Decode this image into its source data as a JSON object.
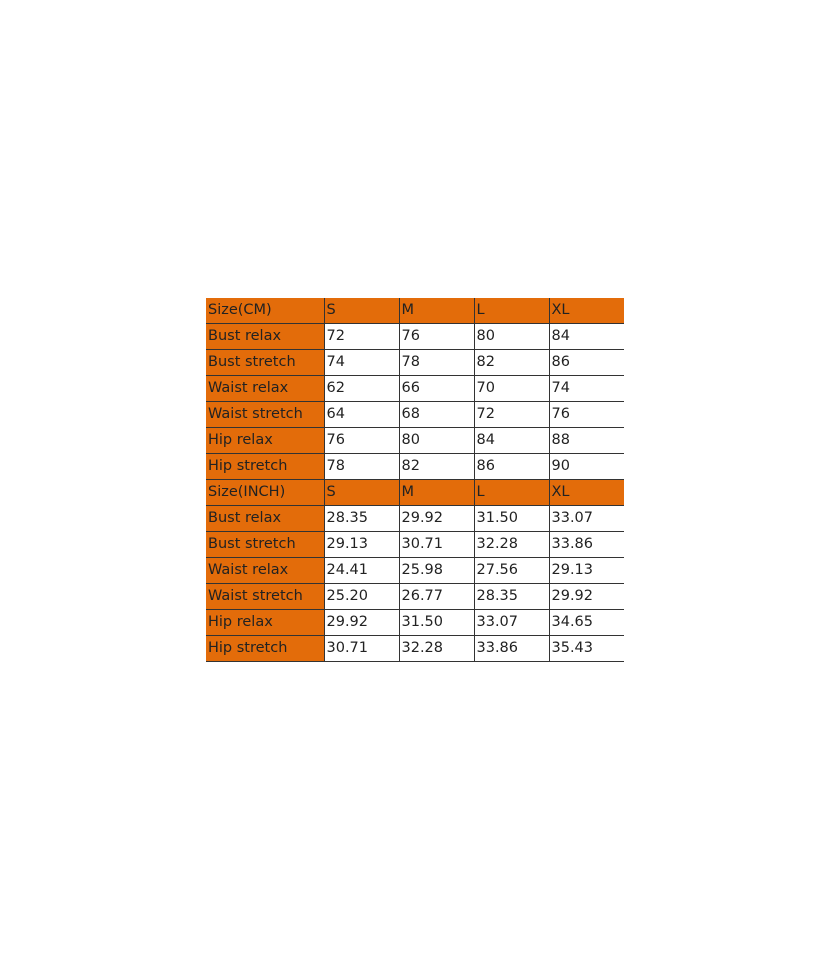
{
  "colors": {
    "header_fill": "#E36C0A",
    "label_fill": "#E36C0A",
    "grid": "#333333"
  },
  "sections": [
    {
      "header": [
        "Size(CM)",
        "S",
        "M",
        "L",
        "XL"
      ],
      "rows": [
        [
          "Bust relax",
          "72",
          "76",
          "80",
          "84"
        ],
        [
          "Bust stretch",
          "74",
          "78",
          "82",
          "86"
        ],
        [
          "Waist relax",
          "62",
          "66",
          "70",
          "74"
        ],
        [
          "Waist stretch",
          "64",
          "68",
          "72",
          "76"
        ],
        [
          "Hip relax",
          "76",
          "80",
          "84",
          "88"
        ],
        [
          "Hip stretch",
          "78",
          "82",
          "86",
          "90"
        ]
      ]
    },
    {
      "header": [
        "Size(INCH)",
        "S",
        "M",
        "L",
        "XL"
      ],
      "rows": [
        [
          "Bust relax",
          "28.35",
          "29.92",
          "31.50",
          "33.07"
        ],
        [
          "Bust stretch",
          "29.13",
          "30.71",
          "32.28",
          "33.86"
        ],
        [
          "Waist relax",
          "24.41",
          "25.98",
          "27.56",
          "29.13"
        ],
        [
          "Waist stretch",
          "25.20",
          "26.77",
          "28.35",
          "29.92"
        ],
        [
          "Hip relax",
          "29.92",
          "31.50",
          "33.07",
          "34.65"
        ],
        [
          "Hip stretch",
          "30.71",
          "32.28",
          "33.86",
          "35.43"
        ]
      ]
    }
  ]
}
